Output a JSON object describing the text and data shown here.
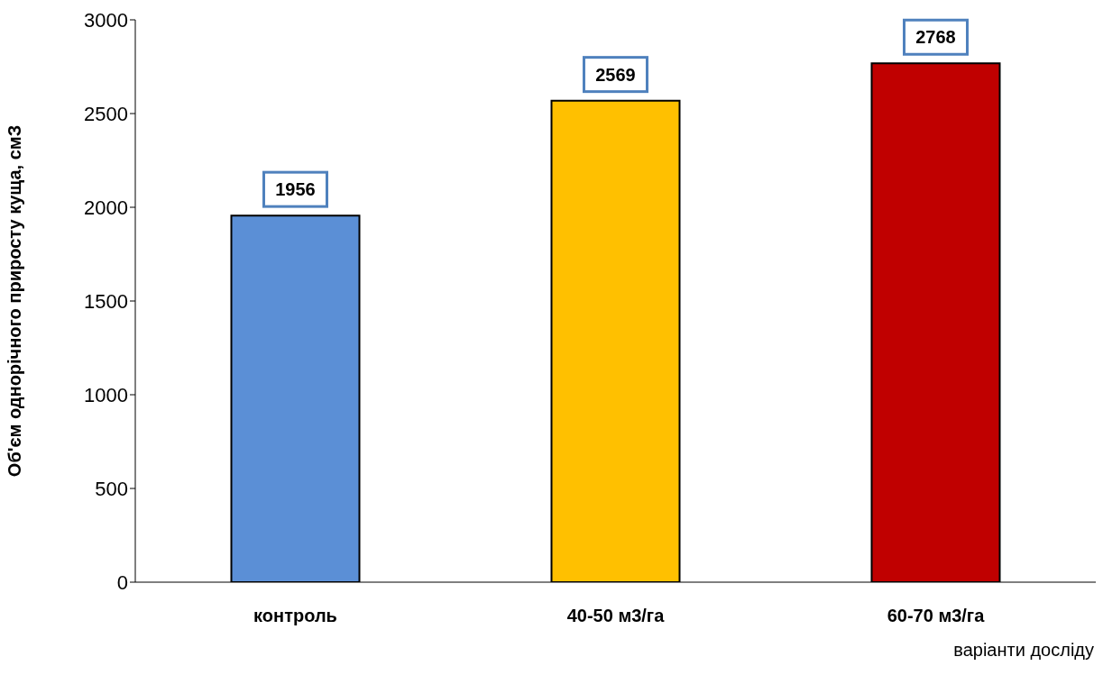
{
  "chart_data": {
    "type": "bar",
    "ylabel": "Об'єм однорічного приросту  куща,  смЗ",
    "xlabel": "варіанти досліду",
    "categories": [
      "контроль",
      "40-50 м3/га",
      "60-70 м3/га"
    ],
    "values": [
      1956,
      2569,
      2768
    ],
    "colors": [
      "#5b8fd6",
      "#ffc000",
      "#c00000"
    ],
    "ylim": [
      0,
      3000
    ],
    "yticks": [
      0,
      500,
      1000,
      1500,
      2000,
      2500,
      3000
    ],
    "data_labels": true
  }
}
